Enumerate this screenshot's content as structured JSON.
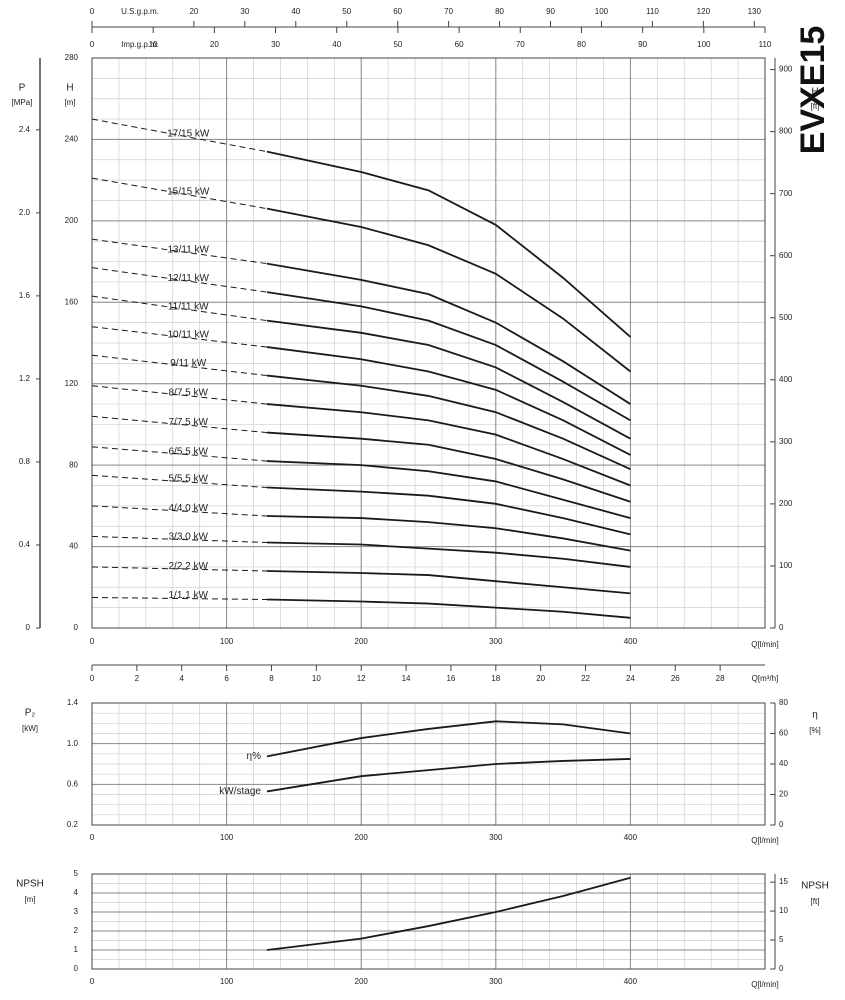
{
  "chart_data": [
    {
      "type": "line",
      "title": "EVXE15",
      "x_label": "Q[l/min]",
      "y_label": "H",
      "y_unit": "[m]",
      "y2_label": "H",
      "y2_unit": "[ft]",
      "y3_label": "P",
      "y3_unit": "[MPa]",
      "x": [
        0,
        130,
        200,
        250,
        300,
        350,
        400
      ],
      "xlim": [
        0,
        500
      ],
      "xticks": [
        0,
        100,
        200,
        300,
        400
      ],
      "ylim": [
        0,
        280
      ],
      "yticks": [
        0,
        40,
        80,
        120,
        160,
        200,
        240,
        280
      ],
      "y2lim": [
        0,
        918.6
      ],
      "y2ticks": [
        0,
        100,
        200,
        300,
        400,
        500,
        600,
        700,
        800,
        900
      ],
      "y3lim": [
        0,
        2.746
      ],
      "y3ticks": [
        0,
        0.4,
        0.8,
        1.2,
        1.6,
        {
          "value": 2,
          "label": "2.0"
        },
        2.4
      ],
      "top_axes": [
        {
          "label": "U.S.g.p.m.",
          "lim": [
            0,
            132.1
          ],
          "ticks": [
            0,
            20,
            30,
            40,
            50,
            60,
            70,
            80,
            90,
            100,
            110,
            120,
            130
          ]
        },
        {
          "label": "Imp.g.p.m.",
          "lim": [
            0,
            110
          ],
          "ticks": [
            0,
            10,
            20,
            30,
            40,
            50,
            60,
            70,
            80,
            90,
            100,
            110
          ]
        }
      ],
      "bottom_axis": {
        "label": "Q[m³/h]",
        "lim": [
          0,
          30
        ],
        "ticks": [
          0,
          2,
          4,
          6,
          8,
          10,
          12,
          14,
          16,
          18,
          20,
          22,
          24,
          26,
          28
        ]
      },
      "dashed_below": 130,
      "line_color": "#1a1a1a",
      "grid": true,
      "series": [
        {
          "name": "17/15 kW",
          "values": [
            250,
            234,
            224,
            215,
            198,
            172,
            143
          ]
        },
        {
          "name": "15/15 kW",
          "values": [
            221,
            206,
            197,
            188,
            174,
            152,
            126
          ]
        },
        {
          "name": "13/11 kW",
          "values": [
            191,
            179,
            171,
            164,
            150,
            131,
            110
          ]
        },
        {
          "name": "12/11 kW",
          "values": [
            177,
            165,
            158,
            151,
            139,
            121,
            102
          ]
        },
        {
          "name": "11/11 kW",
          "values": [
            163,
            151,
            145,
            139,
            128,
            111,
            93
          ]
        },
        {
          "name": "10/11 kW",
          "values": [
            148,
            138,
            132,
            126,
            117,
            102,
            85
          ]
        },
        {
          "name": "9/11 kW",
          "values": [
            134,
            124,
            119,
            114,
            106,
            93,
            78
          ]
        },
        {
          "name": "8/7.5 kW",
          "values": [
            119,
            110,
            106,
            102,
            95,
            83,
            70
          ]
        },
        {
          "name": "7/7.5 kW",
          "values": [
            104,
            96,
            93,
            90,
            83,
            73,
            62
          ]
        },
        {
          "name": "6/5.5 kW",
          "values": [
            89,
            82,
            80,
            77,
            72,
            63,
            54
          ]
        },
        {
          "name": "5/5.5 kW",
          "values": [
            75,
            69,
            67,
            65,
            61,
            54,
            46
          ]
        },
        {
          "name": "4/4.0 kW",
          "values": [
            60,
            55,
            54,
            52,
            49,
            44,
            38
          ]
        },
        {
          "name": "3/3.0 kW",
          "values": [
            45,
            42,
            41,
            39,
            37,
            34,
            30
          ]
        },
        {
          "name": "2/2.2 kW",
          "values": [
            30,
            28,
            27,
            26,
            23,
            20,
            17
          ]
        },
        {
          "name": "1/1.1 kW",
          "values": [
            15,
            14,
            13,
            12,
            10,
            8,
            5
          ]
        }
      ]
    },
    {
      "type": "line",
      "x_label": "Q[l/min]",
      "y_label": "P₂",
      "y_unit": "[kW]",
      "y2_label": "η",
      "y2_unit": "[%]",
      "x": [
        130,
        200,
        250,
        300,
        350,
        400
      ],
      "xlim": [
        0,
        500
      ],
      "xticks": [
        0,
        100,
        200,
        300,
        400
      ],
      "ylim": [
        0.2,
        1.4
      ],
      "yticks": [
        0.2,
        0.6,
        {
          "value": 1,
          "label": "1.0"
        },
        1.4
      ],
      "y2lim": [
        0,
        80
      ],
      "y2ticks": [
        0,
        20,
        40,
        60,
        80
      ],
      "line_color": "#1a1a1a",
      "grid": true,
      "series": [
        {
          "name": "η%",
          "axis": "y2",
          "values": [
            45,
            57,
            63,
            68,
            66,
            60
          ]
        },
        {
          "name": "kW/stage",
          "values": [
            0.53,
            0.68,
            0.74,
            0.8,
            0.83,
            0.85
          ]
        }
      ]
    },
    {
      "type": "line",
      "x_label": "Q[l/min]",
      "y_label": "NPSH",
      "y_unit": "[m]",
      "y2_label": "NPSH",
      "y2_unit": "[ft]",
      "x": [
        130,
        200,
        250,
        300,
        350,
        400
      ],
      "xlim": [
        0,
        500
      ],
      "xticks": [
        0,
        100,
        200,
        300,
        400
      ],
      "ylim": [
        0,
        5
      ],
      "yticks": [
        0,
        1,
        2,
        3,
        4,
        5
      ],
      "y2lim": [
        0,
        16.4
      ],
      "y2ticks": [
        0,
        5,
        10,
        15
      ],
      "line_color": "#1a1a1a",
      "grid": true,
      "values": [
        1,
        1.6,
        2.26,
        3,
        3.84,
        4.8
      ]
    }
  ]
}
